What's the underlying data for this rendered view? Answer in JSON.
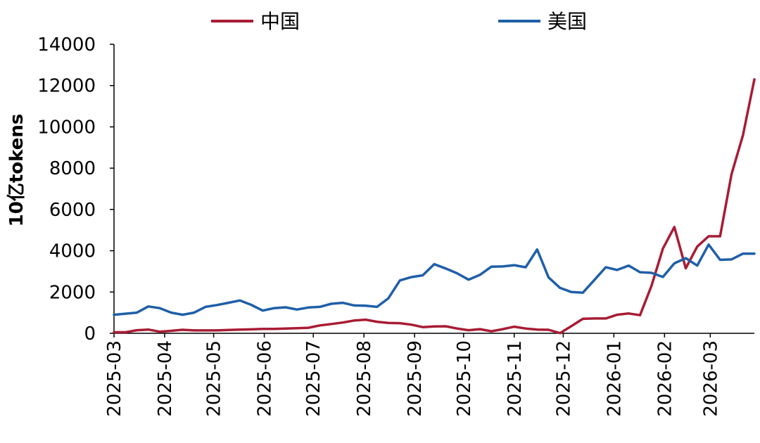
{
  "chart_data": {
    "type": "line",
    "ylabel": "10亿tokens",
    "ylim": [
      0,
      14000
    ],
    "yticks": [
      0,
      2000,
      4000,
      6000,
      8000,
      10000,
      12000,
      14000
    ],
    "xticks": [
      "2025-03",
      "2025-04",
      "2025-05",
      "2025-06",
      "2025-07",
      "2025-08",
      "2025-09",
      "2025-10",
      "2025-11",
      "2025-12",
      "2026-01",
      "2026-02",
      "2026-03"
    ],
    "xrange": [
      "2025-03-01",
      "2026-03-28"
    ],
    "legend_position": "top",
    "grid": false,
    "x": [
      "2025-03-01",
      "2025-03-08",
      "2025-03-15",
      "2025-03-22",
      "2025-03-29",
      "2025-04-05",
      "2025-04-12",
      "2025-04-19",
      "2025-04-26",
      "2025-05-03",
      "2025-05-10",
      "2025-05-17",
      "2025-05-24",
      "2025-05-31",
      "2025-06-07",
      "2025-06-14",
      "2025-06-21",
      "2025-06-28",
      "2025-07-05",
      "2025-07-12",
      "2025-07-19",
      "2025-07-26",
      "2025-08-02",
      "2025-08-09",
      "2025-08-16",
      "2025-08-23",
      "2025-08-30",
      "2025-09-06",
      "2025-09-13",
      "2025-09-20",
      "2025-09-27",
      "2025-10-04",
      "2025-10-11",
      "2025-10-18",
      "2025-10-25",
      "2025-11-01",
      "2025-11-08",
      "2025-11-15",
      "2025-11-22",
      "2025-11-29",
      "2025-12-06",
      "2025-12-13",
      "2025-12-20",
      "2025-12-27",
      "2026-01-03",
      "2026-01-10",
      "2026-01-17",
      "2026-01-24",
      "2026-01-31",
      "2026-02-07",
      "2026-02-14",
      "2026-02-21",
      "2026-02-28",
      "2026-03-07",
      "2026-03-14",
      "2026-03-21",
      "2026-03-28"
    ],
    "series": [
      {
        "name": "中国",
        "color": "#a81c34",
        "values": [
          50,
          50,
          150,
          180,
          80,
          120,
          170,
          140,
          140,
          140,
          160,
          180,
          190,
          210,
          210,
          230,
          250,
          270,
          380,
          450,
          520,
          620,
          660,
          560,
          500,
          490,
          420,
          300,
          330,
          340,
          230,
          150,
          200,
          100,
          200,
          320,
          230,
          180,
          170,
          10,
          350,
          700,
          720,
          720,
          900,
          960,
          880,
          2300,
          4100,
          5150,
          3150,
          4200,
          4700,
          4700,
          7700,
          9600,
          12300
        ]
      },
      {
        "name": "美国",
        "color": "#1f5fa8",
        "values": [
          900,
          950,
          1000,
          1300,
          1220,
          1000,
          900,
          1000,
          1280,
          1370,
          1480,
          1590,
          1380,
          1100,
          1220,
          1260,
          1150,
          1250,
          1280,
          1430,
          1480,
          1350,
          1340,
          1280,
          1700,
          2560,
          2720,
          2810,
          3350,
          3140,
          2910,
          2600,
          2830,
          3230,
          3240,
          3300,
          3200,
          4060,
          2710,
          2200,
          2000,
          1970,
          2580,
          3200,
          3070,
          3280,
          2960,
          2930,
          2730,
          3390,
          3640,
          3280,
          4300,
          3560,
          3580,
          3860,
          3860
        ]
      }
    ]
  }
}
